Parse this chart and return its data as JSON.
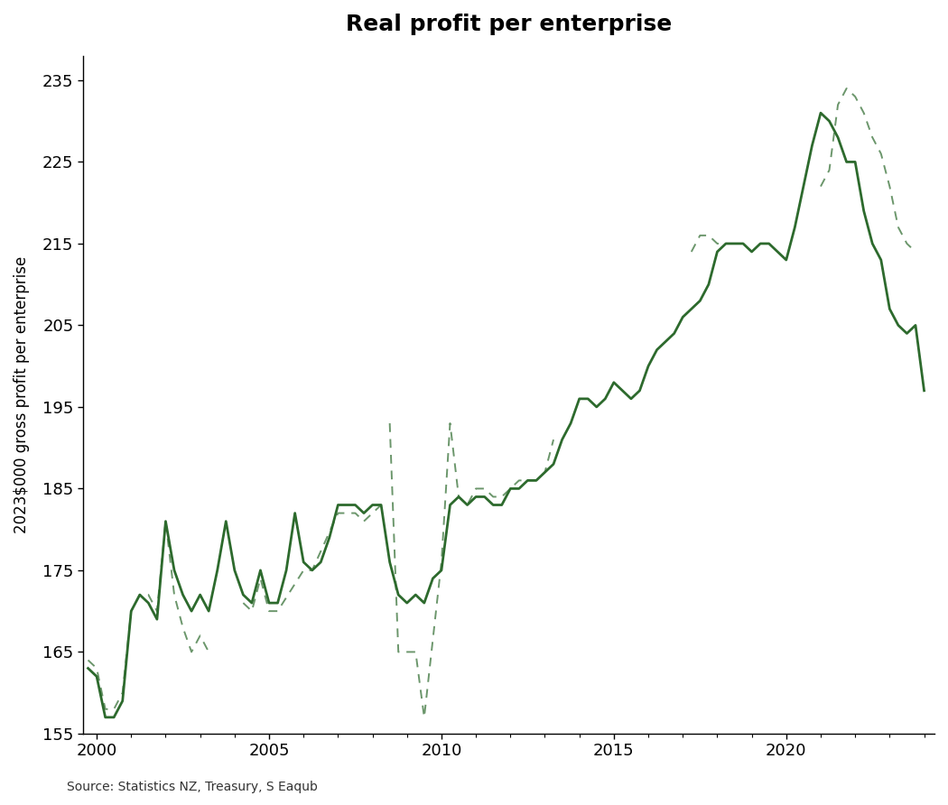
{
  "title": "Real profit per enterprise",
  "ylabel": "2023$000 gross profit per enterprise",
  "source": "Source: Statistics NZ, Treasury, S Eaqub",
  "line_color": "#2d6a2d",
  "ylim": [
    155,
    238
  ],
  "yticks": [
    155,
    165,
    175,
    185,
    195,
    205,
    215,
    225,
    235
  ],
  "xlim": [
    1999.6,
    2024.3
  ],
  "xticks": [
    2000,
    2005,
    2010,
    2015,
    2020
  ],
  "solid_x": [
    1999.75,
    2000.0,
    2000.25,
    2000.5,
    2000.75,
    2001.0,
    2001.25,
    2001.5,
    2001.75,
    2002.0,
    2002.25,
    2002.5,
    2002.75,
    2003.0,
    2003.25,
    2003.5,
    2003.75,
    2004.0,
    2004.25,
    2004.5,
    2004.75,
    2005.0,
    2005.25,
    2005.5,
    2005.75,
    2006.0,
    2006.25,
    2006.5,
    2006.75,
    2007.0,
    2007.25,
    2007.5,
    2007.75,
    2008.0,
    2008.25,
    2008.5,
    2008.75,
    2009.0,
    2009.25,
    2009.5,
    2009.75,
    2010.0,
    2010.25,
    2010.5,
    2010.75,
    2011.0,
    2011.25,
    2011.5,
    2011.75,
    2012.0,
    2012.25,
    2012.5,
    2012.75,
    2013.0,
    2013.25,
    2013.5,
    2013.75,
    2014.0,
    2014.25,
    2014.5,
    2014.75,
    2015.0,
    2015.25,
    2015.5,
    2015.75,
    2016.0,
    2016.25,
    2016.5,
    2016.75,
    2017.0,
    2017.25,
    2017.5,
    2017.75,
    2018.0,
    2018.25,
    2018.5,
    2018.75,
    2019.0,
    2019.25,
    2019.5,
    2019.75,
    2020.0,
    2020.25,
    2020.5,
    2020.75,
    2021.0,
    2021.25,
    2021.5,
    2021.75,
    2022.0,
    2022.25,
    2022.5,
    2022.75,
    2023.0,
    2023.25,
    2023.5,
    2023.75,
    2024.0
  ],
  "solid_y": [
    163,
    162,
    157,
    157,
    159,
    170,
    172,
    171,
    169,
    181,
    175,
    172,
    170,
    172,
    170,
    175,
    181,
    175,
    172,
    171,
    175,
    171,
    171,
    175,
    182,
    176,
    175,
    176,
    179,
    183,
    183,
    183,
    182,
    183,
    183,
    176,
    172,
    171,
    172,
    171,
    174,
    175,
    183,
    184,
    183,
    184,
    184,
    183,
    183,
    185,
    185,
    186,
    186,
    187,
    188,
    191,
    193,
    196,
    196,
    195,
    196,
    198,
    197,
    196,
    197,
    200,
    202,
    203,
    204,
    206,
    207,
    208,
    210,
    214,
    215,
    215,
    215,
    214,
    215,
    215,
    214,
    213,
    217,
    222,
    227,
    231,
    230,
    228,
    225,
    225,
    219,
    215,
    213,
    207,
    205,
    204,
    205,
    197
  ],
  "dashed_segments": [
    {
      "x": [
        1999.75,
        2000.0,
        2000.25,
        2000.5,
        2000.75,
        2001.0,
        2001.25,
        2001.5,
        2001.75,
        2002.0,
        2002.25,
        2002.5,
        2002.75,
        2003.0,
        2003.25
      ],
      "y": [
        164,
        163,
        158,
        158,
        160,
        170,
        172,
        172,
        170,
        181,
        172,
        168,
        165,
        167,
        165
      ]
    },
    {
      "x": [
        2004.25,
        2004.5,
        2004.75,
        2005.0,
        2005.25,
        2006.0,
        2006.25,
        2007.0,
        2007.25,
        2007.5,
        2007.75,
        2008.0,
        2008.25
      ],
      "y": [
        171,
        170,
        174,
        170,
        170,
        175,
        175,
        182,
        182,
        182,
        181,
        182,
        183
      ]
    },
    {
      "x": [
        2008.5,
        2008.75,
        2009.0,
        2009.25,
        2009.5,
        2010.0,
        2010.25,
        2010.5,
        2010.75,
        2011.0,
        2011.25,
        2011.5,
        2011.75,
        2012.0,
        2012.25,
        2012.5,
        2012.75,
        2013.0,
        2013.25
      ],
      "y": [
        193,
        165,
        165,
        165,
        157,
        176,
        193,
        184,
        183,
        185,
        185,
        184,
        184,
        185,
        186,
        186,
        186,
        187,
        191
      ]
    },
    {
      "x": [
        2017.25,
        2017.5,
        2017.75,
        2018.0,
        2018.25
      ],
      "y": [
        214,
        216,
        216,
        215,
        215
      ]
    },
    {
      "x": [
        2021.0,
        2021.25,
        2021.5,
        2021.75,
        2022.0,
        2022.25,
        2022.5,
        2022.75,
        2023.0,
        2023.25,
        2023.5,
        2023.75
      ],
      "y": [
        222,
        224,
        232,
        234,
        233,
        231,
        228,
        226,
        222,
        217,
        215,
        214
      ]
    }
  ]
}
